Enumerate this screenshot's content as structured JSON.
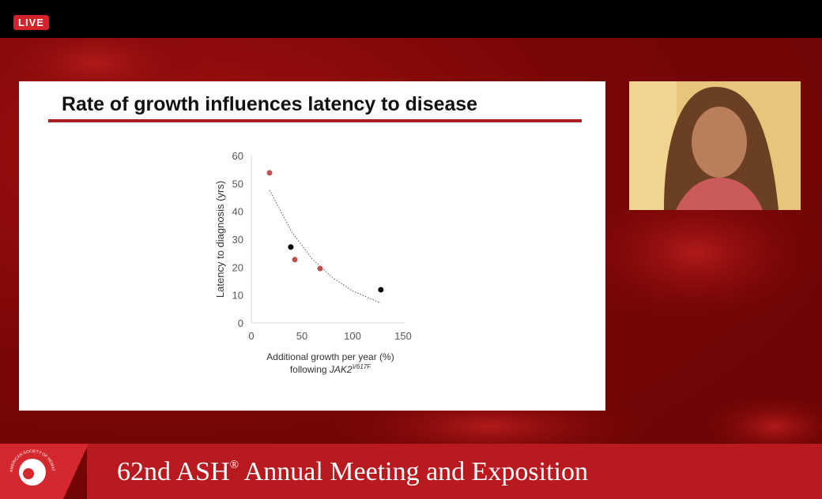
{
  "live_label": "LIVE",
  "slide": {
    "title": "Rate of growth influences latency to disease"
  },
  "chart_data": {
    "type": "scatter",
    "xlabel": {
      "line1": "Additional growth per year (%)",
      "prefix": "following",
      "gene": "JAK2",
      "mutation": "V617F"
    },
    "ylabel": "Latency to diagnosis (yrs)",
    "xlim": [
      0,
      150
    ],
    "xticks": [
      0,
      50,
      100,
      150
    ],
    "ylim": [
      0,
      60
    ],
    "yticks": [
      0,
      10,
      20,
      30,
      40,
      50,
      60
    ],
    "series": [
      {
        "color": "#c0504d",
        "x": [
          18,
          43,
          68
        ],
        "values": [
          53.8,
          22.7,
          19.5
        ]
      },
      {
        "color": "#000000",
        "x": [
          39,
          128
        ],
        "values": [
          27.2,
          11.9
        ]
      }
    ],
    "trendline": {
      "color": "#555555",
      "x": [
        18,
        40,
        60,
        80,
        100,
        128
      ],
      "values": [
        47.6,
        32.6,
        23.0,
        16.3,
        11.5,
        7.1
      ]
    }
  },
  "banner": {
    "logo_text": "AMERICAN SOCIETY OF HEMATOLOGY",
    "event": "62nd ASH",
    "reg": "®",
    "rest": " Annual Meeting and Exposition"
  }
}
